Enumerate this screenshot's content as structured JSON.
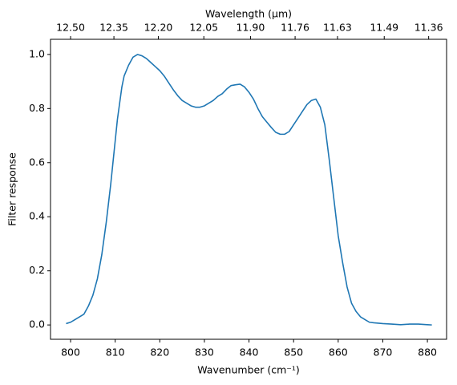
{
  "chart_data": {
    "type": "line",
    "xlabel": "Wavenumber (cm⁻¹)",
    "ylabel": "Filter response",
    "x2label": "Wavelength (μm)",
    "x": [
      799,
      800,
      801,
      802,
      803,
      804,
      805,
      806,
      807,
      808,
      809,
      810,
      810.5,
      811,
      811.5,
      812,
      813,
      814,
      815,
      816,
      817,
      818,
      819,
      820,
      821,
      822,
      823,
      824,
      825,
      826,
      827,
      828,
      829,
      830,
      831,
      832,
      833,
      834,
      835,
      836,
      837,
      838,
      839,
      840,
      841,
      842,
      843,
      844,
      845,
      846,
      847,
      848,
      849,
      850,
      851,
      852,
      853,
      854,
      855,
      856,
      857,
      858,
      859,
      860,
      861,
      862,
      863,
      864,
      865,
      866,
      867,
      868,
      870,
      872,
      874,
      876,
      878,
      880,
      881
    ],
    "series": [
      {
        "name": "Filter response",
        "color": "#1f77b4",
        "values": [
          0.005,
          0.01,
          0.02,
          0.03,
          0.04,
          0.07,
          0.11,
          0.17,
          0.26,
          0.38,
          0.52,
          0.68,
          0.76,
          0.82,
          0.88,
          0.92,
          0.96,
          0.99,
          1.0,
          0.995,
          0.985,
          0.97,
          0.955,
          0.94,
          0.92,
          0.895,
          0.87,
          0.848,
          0.83,
          0.82,
          0.81,
          0.805,
          0.805,
          0.81,
          0.82,
          0.83,
          0.845,
          0.855,
          0.872,
          0.885,
          0.888,
          0.89,
          0.88,
          0.86,
          0.835,
          0.8,
          0.77,
          0.75,
          0.73,
          0.712,
          0.705,
          0.705,
          0.715,
          0.74,
          0.765,
          0.79,
          0.815,
          0.83,
          0.835,
          0.805,
          0.74,
          0.61,
          0.47,
          0.33,
          0.23,
          0.14,
          0.08,
          0.05,
          0.03,
          0.02,
          0.01,
          0.008,
          0.005,
          0.003,
          0.001,
          0.003,
          0.003,
          0.001,
          0.0
        ]
      }
    ],
    "xlim": [
      795.5,
      884.3
    ],
    "ylim": [
      -0.053,
      1.056
    ],
    "xticks": [
      800,
      810,
      820,
      830,
      840,
      850,
      860,
      870,
      880
    ],
    "yticks": [
      {
        "value": 0,
        "label": "0.0"
      },
      0.2,
      0.4,
      0.6,
      0.8,
      {
        "value": 1,
        "label": "1.0"
      }
    ],
    "x2ticks": [
      {
        "value": 12.5,
        "label": "12.50"
      },
      12.35,
      {
        "value": 12.2,
        "label": "12.20"
      },
      12.05,
      {
        "value": 11.9,
        "label": "11.90"
      },
      11.76,
      11.63,
      11.49,
      11.36
    ]
  }
}
